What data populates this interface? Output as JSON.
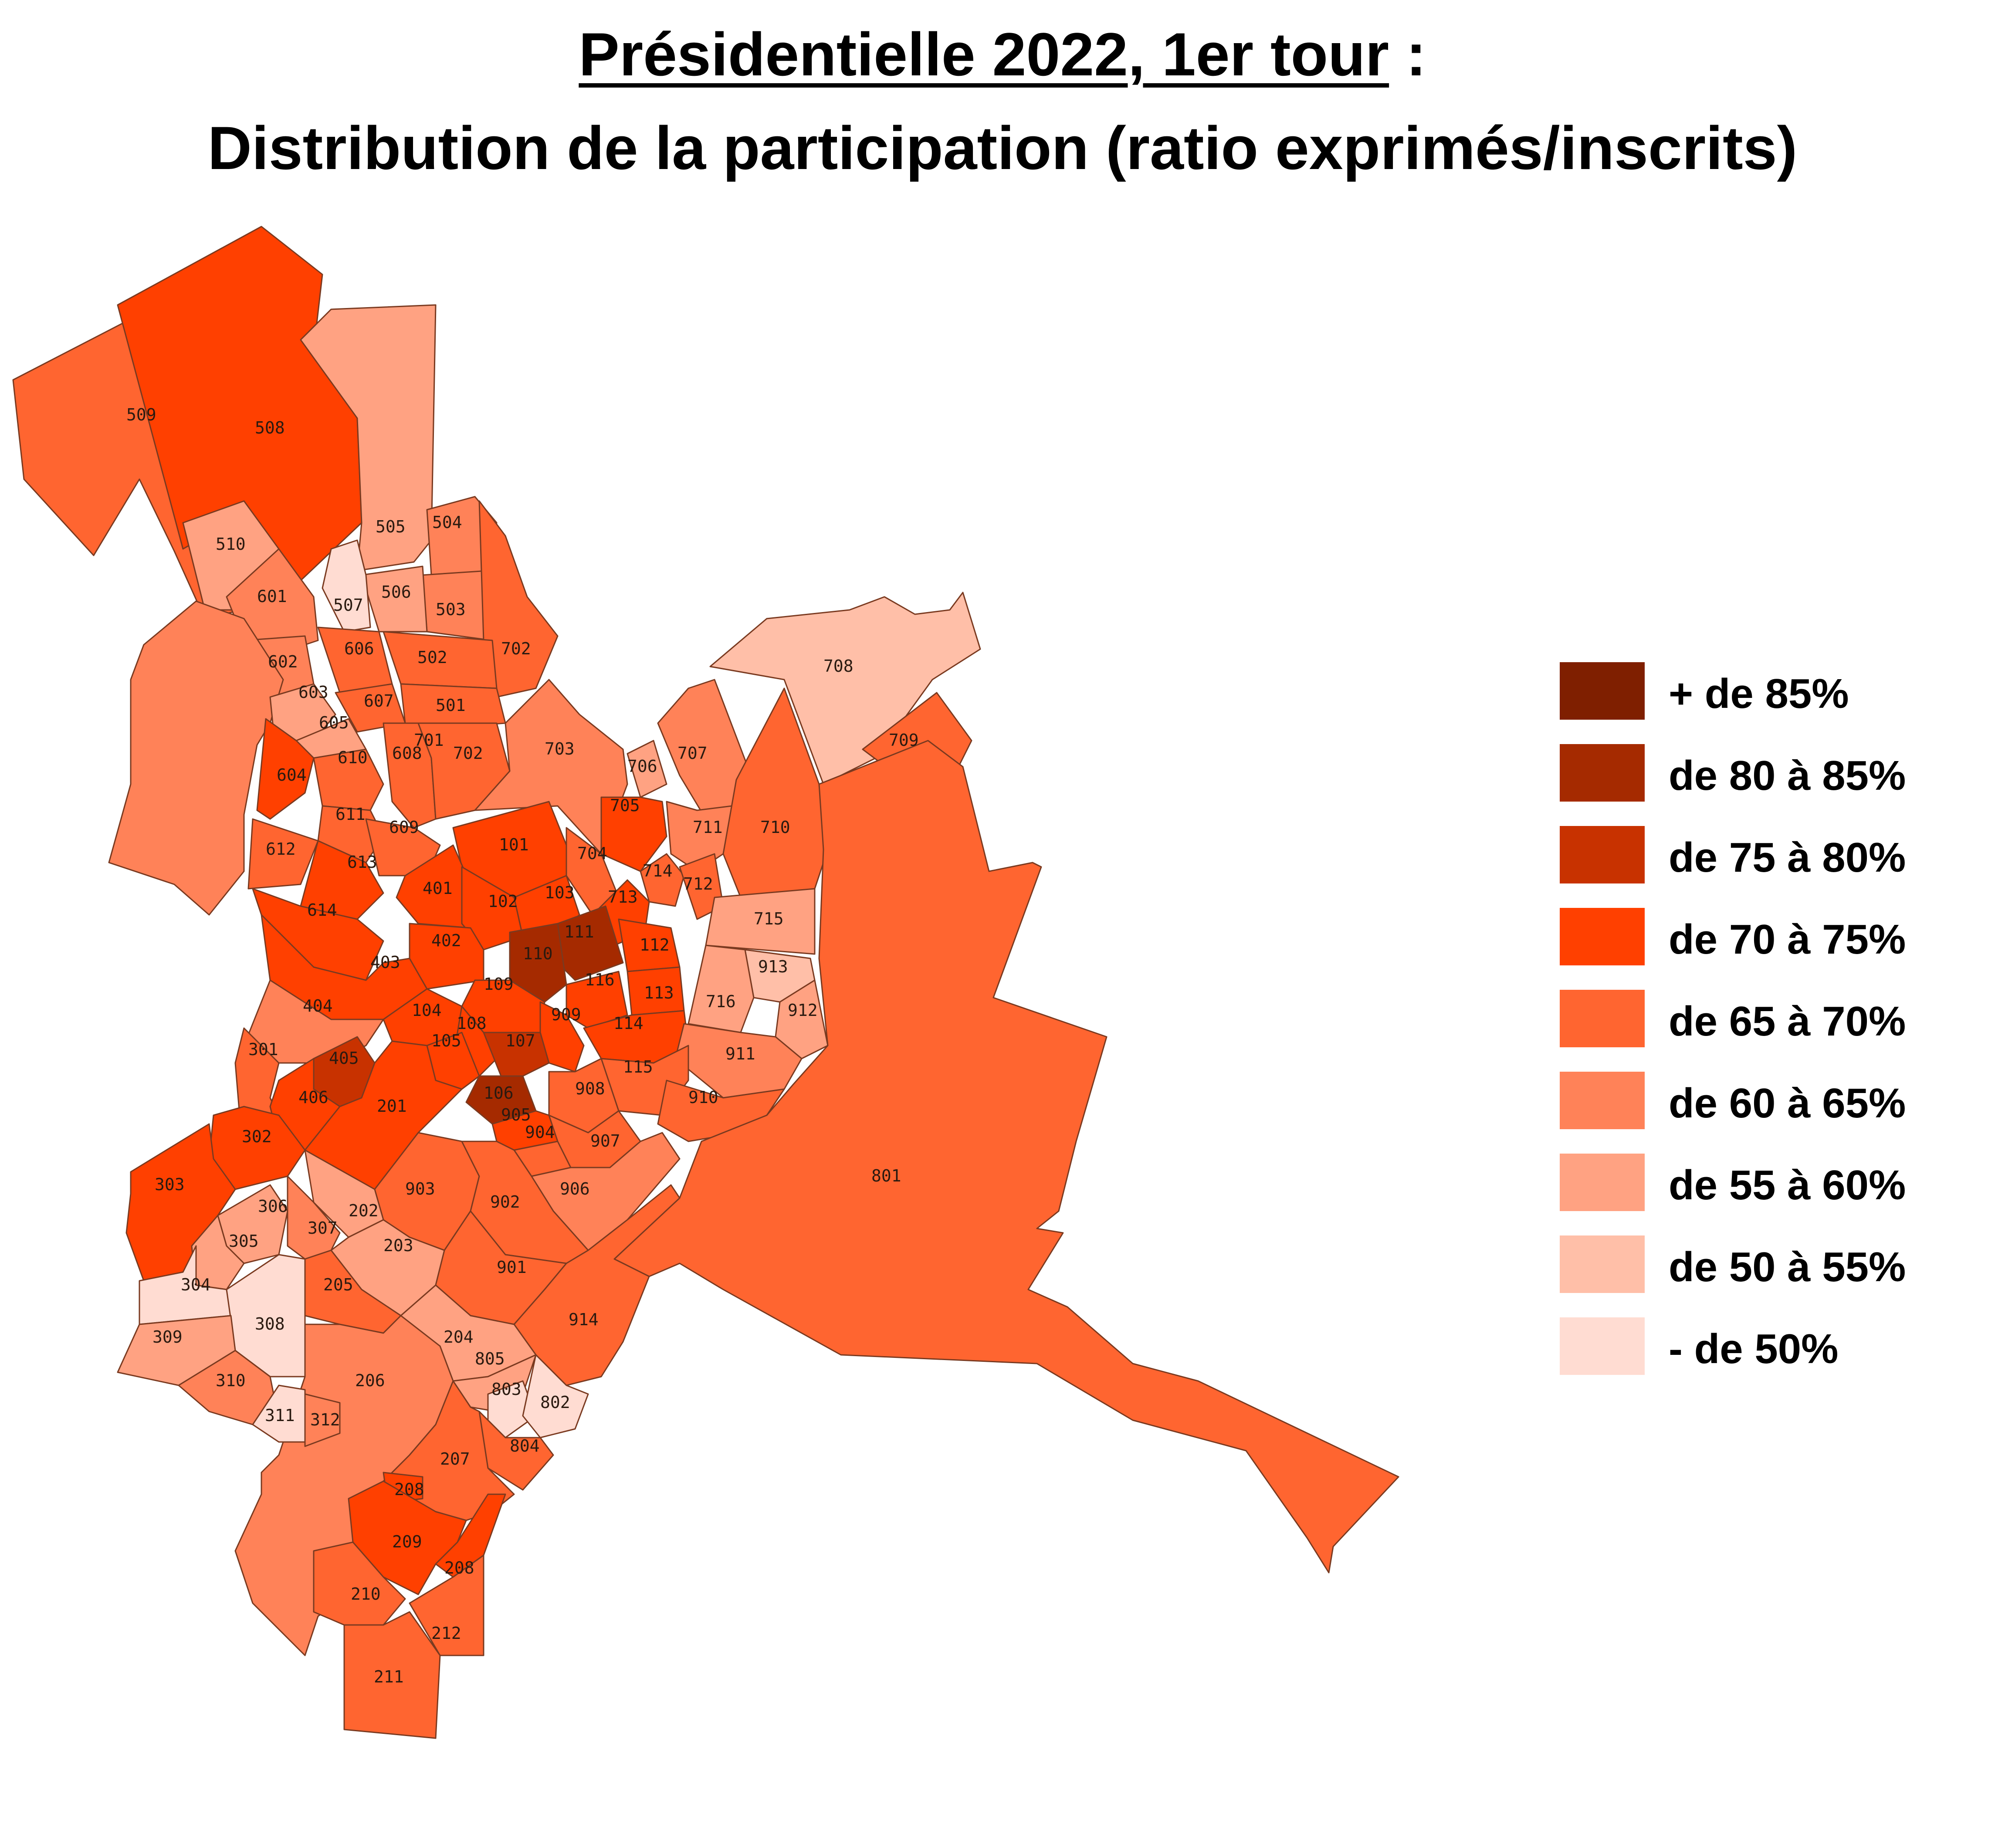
{
  "title": {
    "line1_underlined": "Présidentielle 2022, 1er tour",
    "line1_suffix": " :",
    "line2": "Distribution de la participation (ratio exprimés/inscrits)"
  },
  "legend": [
    {
      "label": "+ de 85%",
      "color": "#7f1f00"
    },
    {
      "label": "de 80 à 85%",
      "color": "#a52a00"
    },
    {
      "label": "de 75 à 80%",
      "color": "#c83200"
    },
    {
      "label": "de 70 à 75%",
      "color": "#ff4000"
    },
    {
      "label": "de 65 à 70%",
      "color": "#ff6530"
    },
    {
      "label": "de 60 à 65%",
      "color": "#ff8258"
    },
    {
      "label": "de 55 à 60%",
      "color": "#ffa282"
    },
    {
      "label": "de 50 à 55%",
      "color": "#ffbfa8"
    },
    {
      "label": "- de 50%",
      "color": "#ffdcd2"
    }
  ],
  "districts": [
    {
      "id": "509"
    },
    {
      "id": "508"
    },
    {
      "id": "505"
    },
    {
      "id": "504"
    },
    {
      "id": "503"
    },
    {
      "id": "506"
    },
    {
      "id": "507"
    },
    {
      "id": "510"
    },
    {
      "id": "601"
    },
    {
      "id": "602"
    },
    {
      "id": "606"
    },
    {
      "id": "702"
    },
    {
      "id": "502"
    },
    {
      "id": "603"
    },
    {
      "id": "607"
    },
    {
      "id": "501"
    },
    {
      "id": "605"
    },
    {
      "id": "604"
    },
    {
      "id": "610"
    },
    {
      "id": "608"
    },
    {
      "id": "701"
    },
    {
      "id": "702"
    },
    {
      "id": "703"
    },
    {
      "id": "708"
    },
    {
      "id": "709"
    },
    {
      "id": "707"
    },
    {
      "id": "706"
    },
    {
      "id": "705"
    },
    {
      "id": "611"
    },
    {
      "id": "609"
    },
    {
      "id": "101"
    },
    {
      "id": "704"
    },
    {
      "id": "711"
    },
    {
      "id": "710"
    },
    {
      "id": "612"
    },
    {
      "id": "613"
    },
    {
      "id": "714"
    },
    {
      "id": "712"
    },
    {
      "id": "614"
    },
    {
      "id": "401"
    },
    {
      "id": "102"
    },
    {
      "id": "103"
    },
    {
      "id": "713"
    },
    {
      "id": "715"
    },
    {
      "id": "111"
    },
    {
      "id": "110"
    },
    {
      "id": "112"
    },
    {
      "id": "402"
    },
    {
      "id": "403"
    },
    {
      "id": "913"
    },
    {
      "id": "109"
    },
    {
      "id": "116"
    },
    {
      "id": "113"
    },
    {
      "id": "716"
    },
    {
      "id": "404"
    },
    {
      "id": "104"
    },
    {
      "id": "108"
    },
    {
      "id": "909"
    },
    {
      "id": "912"
    },
    {
      "id": "114"
    },
    {
      "id": "105"
    },
    {
      "id": "107"
    },
    {
      "id": "911"
    },
    {
      "id": "301"
    },
    {
      "id": "405"
    },
    {
      "id": "115"
    },
    {
      "id": "908"
    },
    {
      "id": "106"
    },
    {
      "id": "910"
    },
    {
      "id": "406"
    },
    {
      "id": "201"
    },
    {
      "id": "905"
    },
    {
      "id": "904"
    },
    {
      "id": "302"
    },
    {
      "id": "907"
    },
    {
      "id": "801"
    },
    {
      "id": "303"
    },
    {
      "id": "906"
    },
    {
      "id": "903"
    },
    {
      "id": "306"
    },
    {
      "id": "902"
    },
    {
      "id": "202"
    },
    {
      "id": "307"
    },
    {
      "id": "305"
    },
    {
      "id": "203"
    },
    {
      "id": "901"
    },
    {
      "id": "304"
    },
    {
      "id": "205"
    },
    {
      "id": "914"
    },
    {
      "id": "308"
    },
    {
      "id": "309"
    },
    {
      "id": "204"
    },
    {
      "id": "805"
    },
    {
      "id": "206"
    },
    {
      "id": "310"
    },
    {
      "id": "803"
    },
    {
      "id": "802"
    },
    {
      "id": "311"
    },
    {
      "id": "312"
    },
    {
      "id": "804"
    },
    {
      "id": "207"
    },
    {
      "id": "208"
    },
    {
      "id": "209"
    },
    {
      "id": "208"
    },
    {
      "id": "210"
    },
    {
      "id": "212"
    },
    {
      "id": "211"
    }
  ]
}
